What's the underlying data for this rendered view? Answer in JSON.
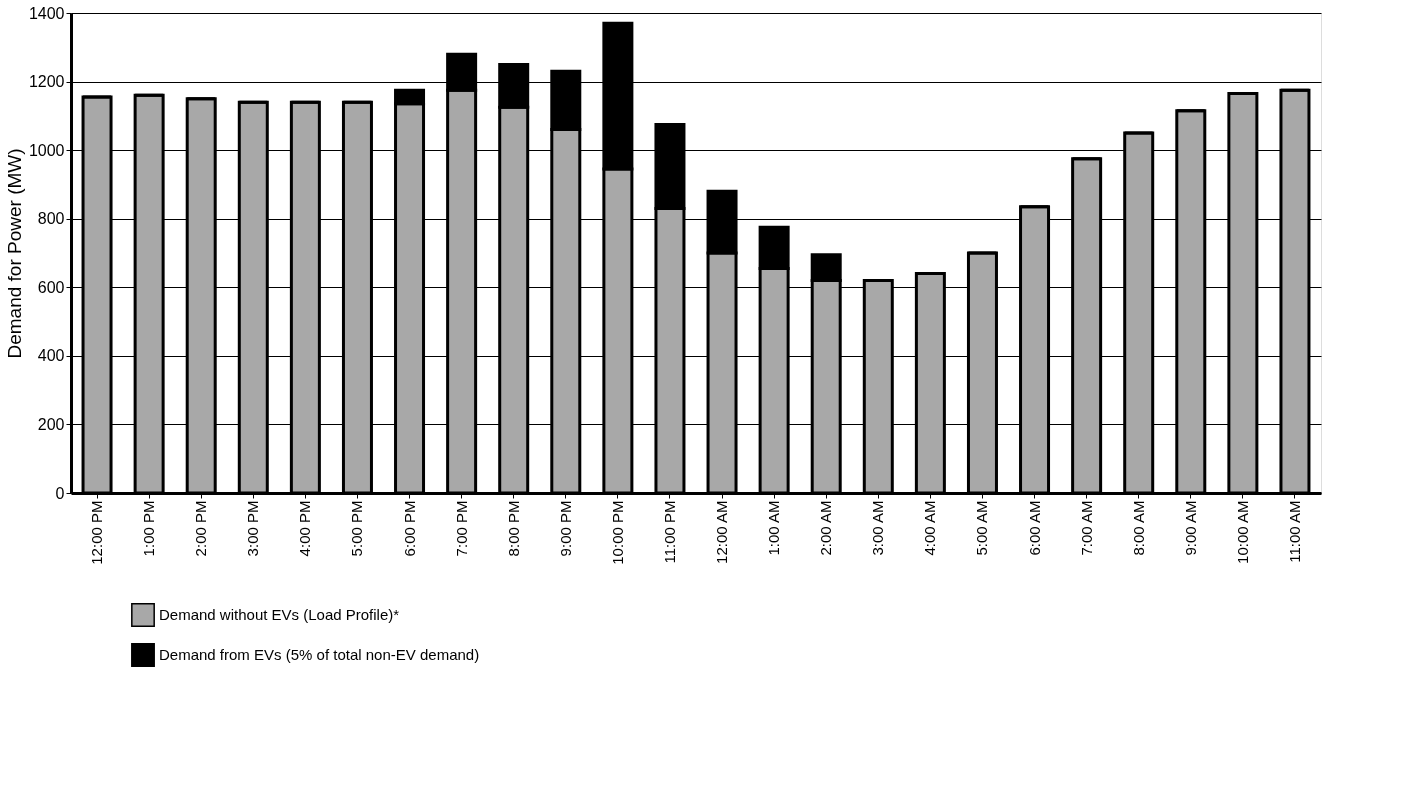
{
  "chart_data": {
    "type": "bar",
    "stacked": true,
    "ylabel": "Demand for Power (MW)",
    "categories": [
      "12:00 PM",
      "1:00 PM",
      "2:00 PM",
      "3:00 PM",
      "4:00 PM",
      "5:00 PM",
      "6:00 PM",
      "7:00 PM",
      "8:00 PM",
      "9:00 PM",
      "10:00 PM",
      "11:00 PM",
      "12:00 AM",
      "1:00 AM",
      "2:00 AM",
      "3:00 AM",
      "4:00 AM",
      "5:00 AM",
      "6:00 AM",
      "7:00 AM",
      "8:00 AM",
      "9:00 AM",
      "10:00 AM",
      "11:00 AM"
    ],
    "series": [
      {
        "name": "Demand without EVs (Load Profile)*",
        "color": "#a8a8a8",
        "values": [
          1155,
          1160,
          1150,
          1140,
          1140,
          1140,
          1135,
          1175,
          1125,
          1060,
          945,
          830,
          700,
          655,
          620,
          620,
          640,
          700,
          835,
          975,
          1050,
          1115,
          1165,
          1175
        ]
      },
      {
        "name": "Demand from EVs (5% of total non-EV demand)",
        "color": "#000000",
        "values": [
          0,
          0,
          0,
          0,
          0,
          0,
          40,
          105,
          125,
          170,
          425,
          245,
          180,
          120,
          75,
          0,
          0,
          0,
          0,
          0,
          0,
          0,
          0,
          0
        ]
      }
    ],
    "ylim": [
      0,
      1400
    ],
    "yticks": [
      0,
      200,
      400,
      600,
      800,
      1000,
      1200,
      1400
    ],
    "grid": "y",
    "legend": "bottom left"
  }
}
